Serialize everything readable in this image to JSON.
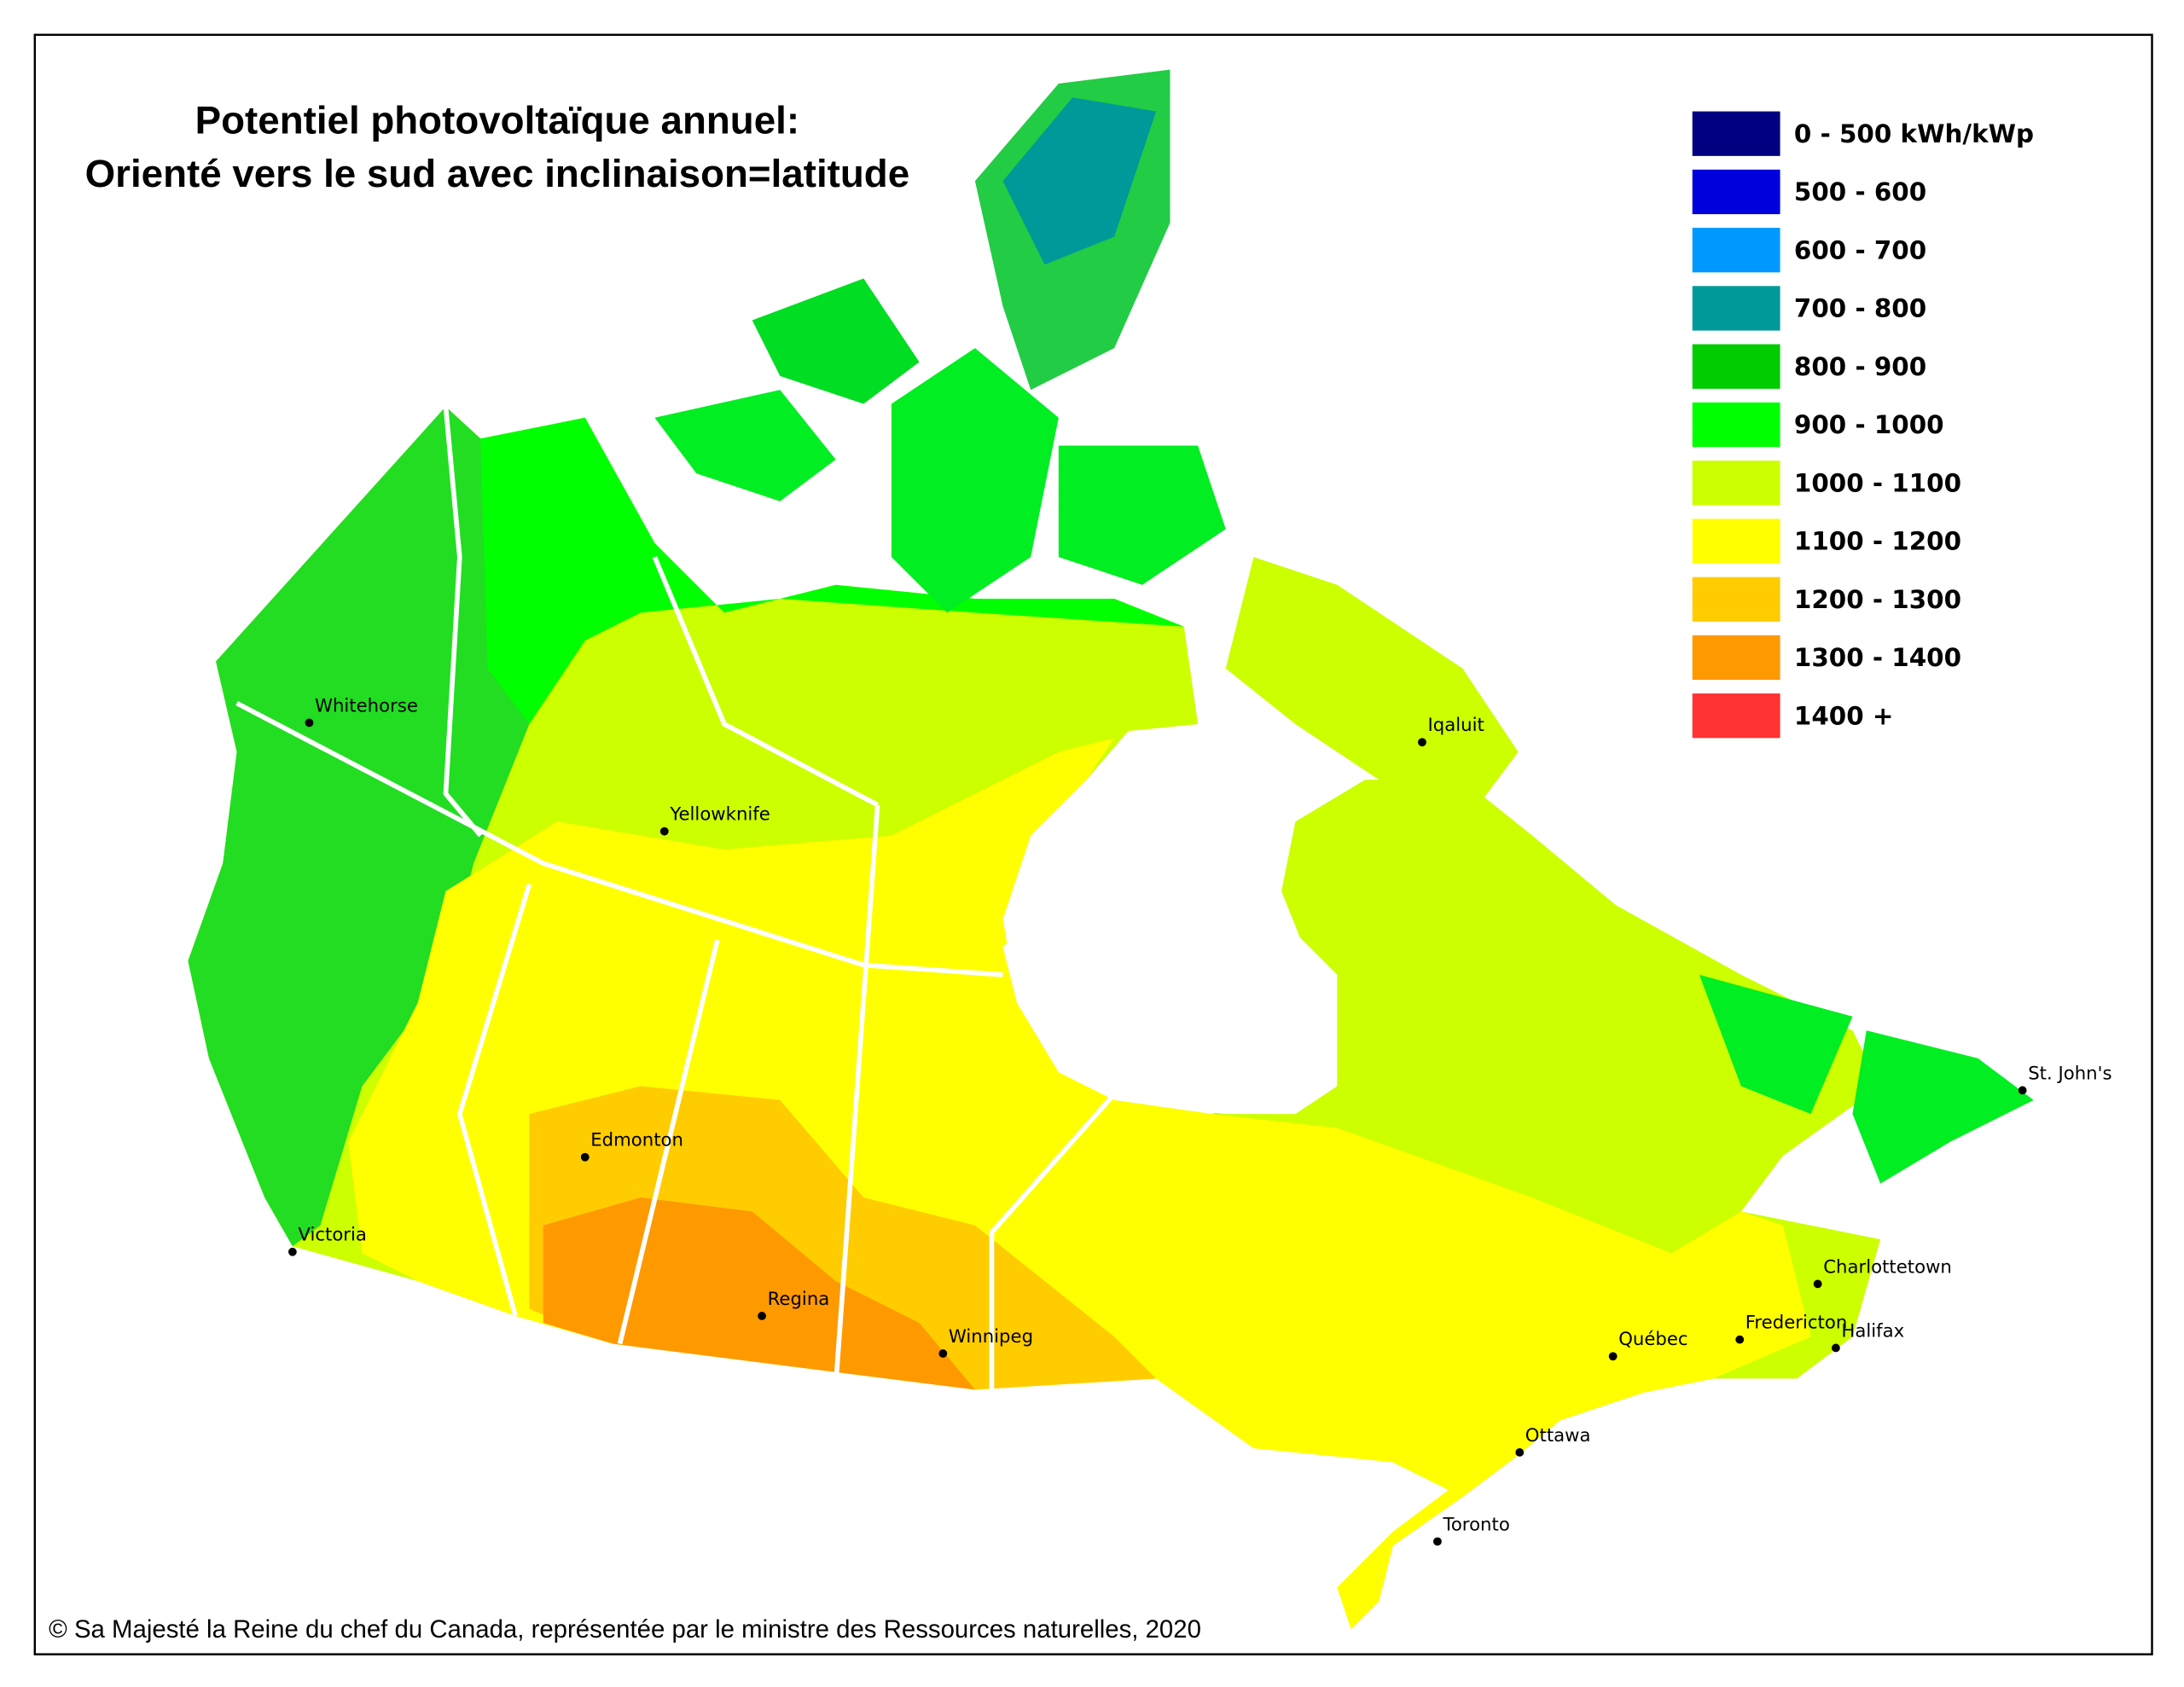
{
  "title": [
    "Potentiel photovoltaïque annuel:",
    "Orienté vers le sud avec inclinaison=latitude"
  ],
  "legend": [
    {
      "label": "0 - 500 kWh/kWp",
      "color": "#000080"
    },
    {
      "label": "500 - 600",
      "color": "#0000dd"
    },
    {
      "label": "600 - 700",
      "color": "#0099ff"
    },
    {
      "label": "700 - 800",
      "color": "#009999"
    },
    {
      "label": "800 - 900",
      "color": "#00cc00"
    },
    {
      "label": "900 - 1000",
      "color": "#00ff00"
    },
    {
      "label": "1000 - 1100",
      "color": "#ccff00"
    },
    {
      "label": "1100 - 1200",
      "color": "#ffff00"
    },
    {
      "label": "1200 - 1300",
      "color": "#ffcc00"
    },
    {
      "label": "1300 - 1400",
      "color": "#ff9900"
    },
    {
      "label": "1400 +",
      "color": "#ff3333"
    }
  ],
  "cities": [
    "Whitehorse",
    "Yellowknife",
    "Edmonton",
    "Victoria",
    "Regina",
    "Winnipeg",
    "Iqaluit",
    "St. John's",
    "Charlottetown",
    "Fredericton",
    "Halifax",
    "Québec",
    "Ottawa",
    "Toronto"
  ],
  "copyright": "© Sa Majesté la Reine du chef du Canada, représentée par le ministre des Ressources naturelles, 2020"
}
